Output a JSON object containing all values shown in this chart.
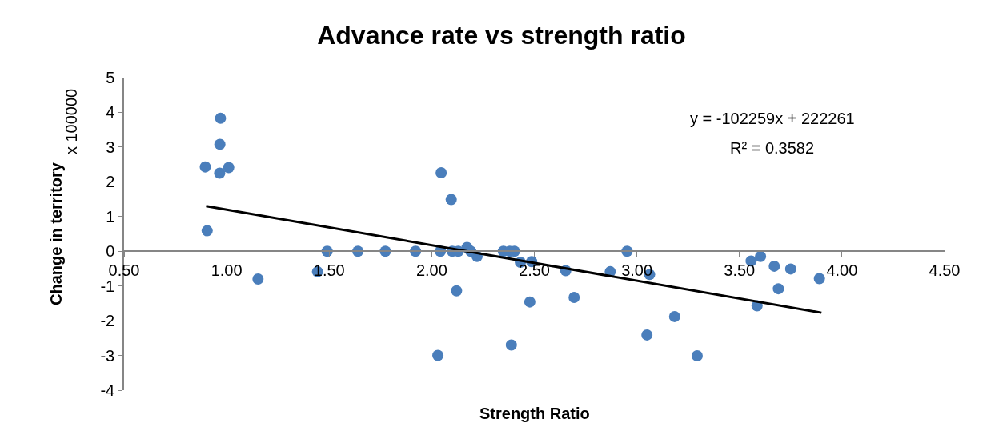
{
  "chart_data": {
    "type": "scatter",
    "title": "Advance rate vs strength ratio",
    "xlabel": "Strength Ratio",
    "ylabel": "Change in territory",
    "annotations": [
      "x 100000",
      "y = -102259x + 222261",
      "R² = 0.3582"
    ],
    "xlim": [
      0.5,
      4.5
    ],
    "xticks": [
      {
        "value": 0.5,
        "label": "0.50"
      },
      {
        "value": 1,
        "label": "1.00"
      },
      {
        "value": 1.5,
        "label": "1.50"
      },
      {
        "value": 2,
        "label": "2.00"
      },
      {
        "value": 2.5,
        "label": "2.50"
      },
      {
        "value": 3,
        "label": "3.00"
      },
      {
        "value": 3.5,
        "label": "3.50"
      },
      {
        "value": 4,
        "label": "4.00"
      },
      {
        "value": 4.5,
        "label": "4.50"
      }
    ],
    "ylim": [
      -4,
      5
    ],
    "yticks": [
      -4,
      -3,
      -2,
      -1,
      0,
      1,
      2,
      3,
      4,
      5
    ],
    "marker": "circle",
    "series": [
      {
        "color": "#4a7ebb",
        "x": [
          0.896,
          0.97,
          0.967,
          0.966,
          1.01,
          0.905,
          1.153,
          1.443,
          1.49,
          1.64,
          1.774,
          1.921,
          2.042,
          2.046,
          2.03,
          2.095,
          2.1,
          2.129,
          2.172,
          2.19,
          2.221,
          2.121,
          2.349,
          2.38,
          2.403,
          2.432,
          2.487,
          2.478,
          2.388,
          2.653,
          2.694,
          2.87,
          2.952,
          3.062,
          3.049,
          3.184,
          3.294,
          3.557,
          3.603,
          3.67,
          3.75,
          3.69,
          3.586,
          3.89
        ],
        "values": [
          2.43,
          3.83,
          3.08,
          2.25,
          2.41,
          0.59,
          -0.8,
          -0.59,
          0,
          0,
          0,
          0,
          0,
          2.26,
          -3.0,
          1.49,
          0,
          0,
          0.11,
          0,
          -0.15,
          -1.14,
          0,
          0,
          0,
          -0.32,
          -0.3,
          -1.46,
          -2.7,
          -0.56,
          -1.33,
          -0.59,
          0,
          -0.67,
          -2.41,
          -1.88,
          -3.01,
          -0.28,
          -0.15,
          -0.43,
          -0.51,
          -1.08,
          -1.57,
          -0.79
        ]
      },
      {
        "type": "line",
        "color": "#000000",
        "marker": "none",
        "line_style": "solid",
        "x": [
          0.9,
          3.9
        ],
        "values": [
          1.3,
          -1.77
        ]
      }
    ]
  }
}
